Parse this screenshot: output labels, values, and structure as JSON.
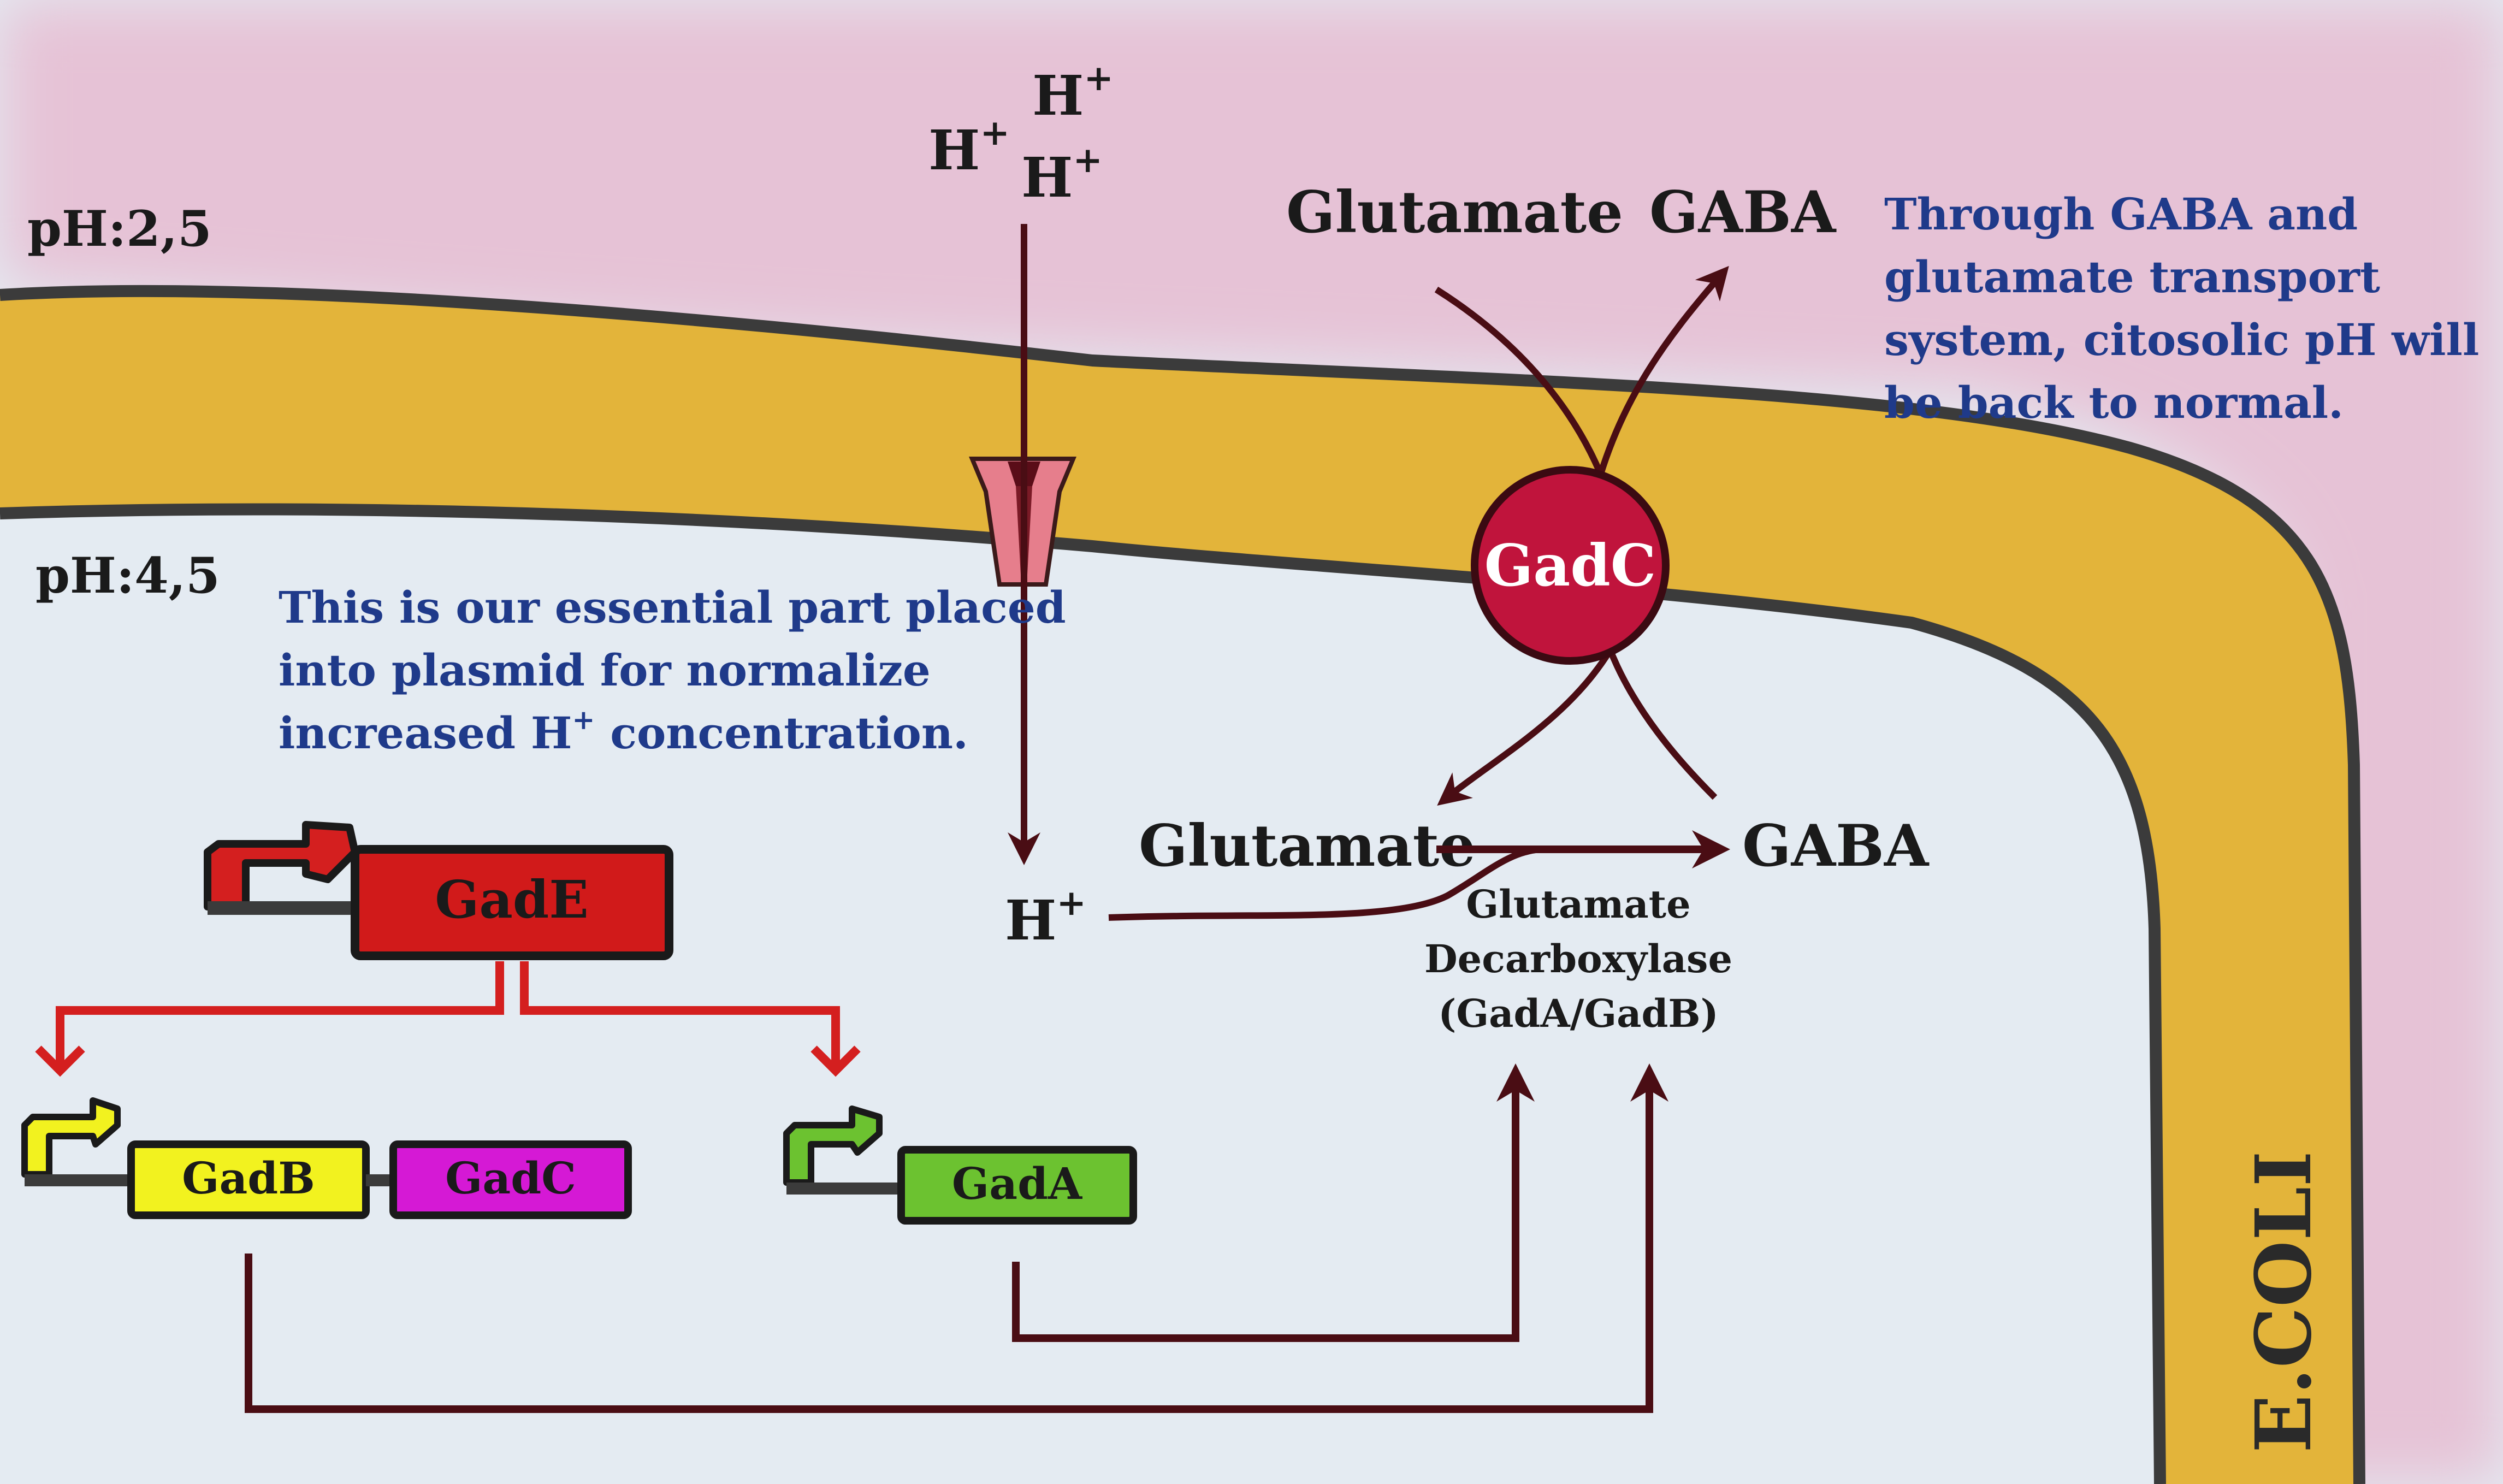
{
  "environment": {
    "outer_ph": "pH:2,5",
    "inner_ph": "pH:4,5",
    "organism": "E.COLI"
  },
  "protons": {
    "ion": "H",
    "charge": "+"
  },
  "transporter": {
    "label": "GadC",
    "substrate_outside": "Glutamate",
    "product_outside": "GABA"
  },
  "reaction": {
    "substrate": "Glutamate",
    "product": "GABA",
    "enzyme_line1": "Glutamate",
    "enzyme_line2": "Decarboxylase",
    "enzyme_line3": "(GadA/GadB)"
  },
  "notes": {
    "transport_note": [
      "Through GABA and",
      "glutamate transport",
      "system, citosolic pH will",
      "be back to normal."
    ],
    "plasmid_note": {
      "line1": "This is our essential part placed",
      "line2": "into plasmid for normalize",
      "line3_prefix": "increased H",
      "line3_sup": "+",
      "line3_suffix": " concentration."
    }
  },
  "genes": {
    "regulator": "GadE",
    "operon_gene_1": "GadB",
    "operon_gene_2": "GadC",
    "single_gene": "GadA"
  },
  "colors": {
    "outside_pink": "#e6c2d6",
    "background": "#e4ebf2",
    "membrane_fill": "#e3b43a",
    "membrane_outline": "#3b3b3b",
    "arrow_dark": "#4a0d14",
    "text_blue": "#1f3a8a",
    "gadc_circle": "#c0143c",
    "gade_box": "#d11a1a",
    "gadb_box": "#f2f21f",
    "gadc_box": "#d519d5",
    "gada_box": "#6cc230",
    "reg_arrow_red": "#d41f1f"
  }
}
